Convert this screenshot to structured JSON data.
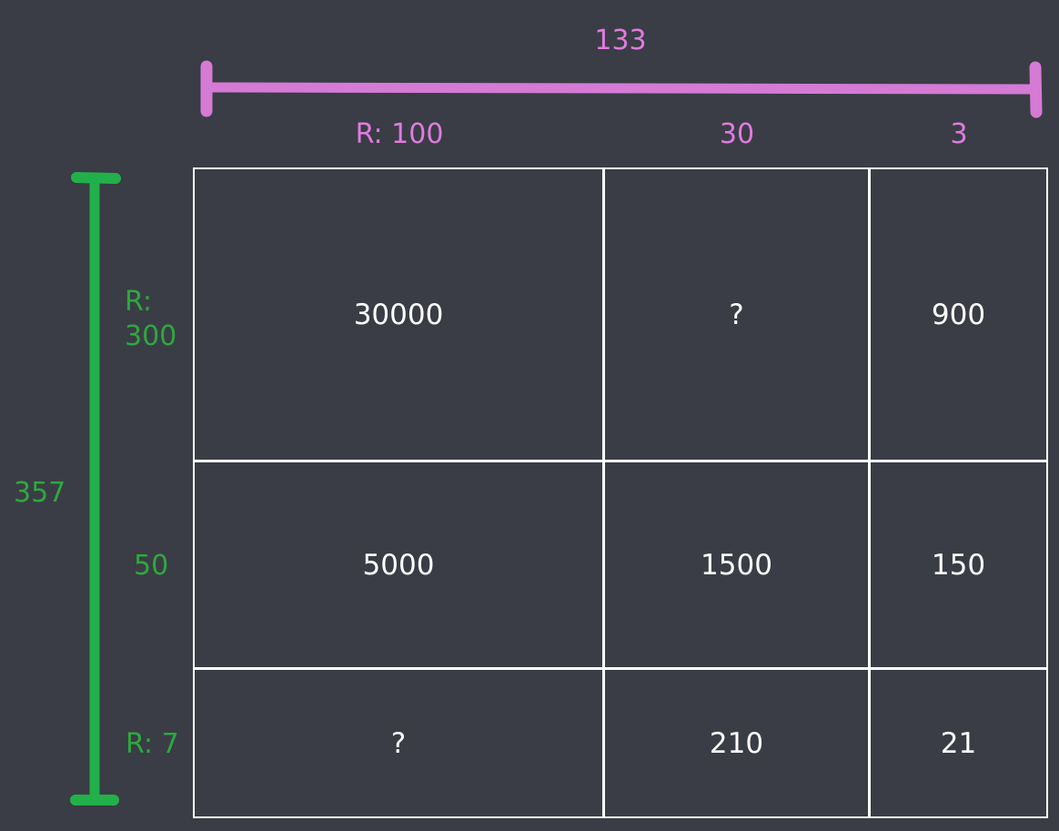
{
  "colors": {
    "background": "#3a3d45",
    "horizontal_accent": "#e07be0",
    "vertical_accent": "#2ea83e",
    "grid": "#ffffff"
  },
  "horizontal": {
    "total": "133",
    "columns": [
      "R: 100",
      "30",
      "3"
    ]
  },
  "vertical": {
    "total": "357",
    "rows": [
      "R:\n300",
      "50",
      "R: 7"
    ]
  },
  "grid": {
    "rows": [
      [
        "30000",
        "?",
        "900"
      ],
      [
        "5000",
        "1500",
        "150"
      ],
      [
        "?",
        "210",
        "21"
      ]
    ]
  }
}
